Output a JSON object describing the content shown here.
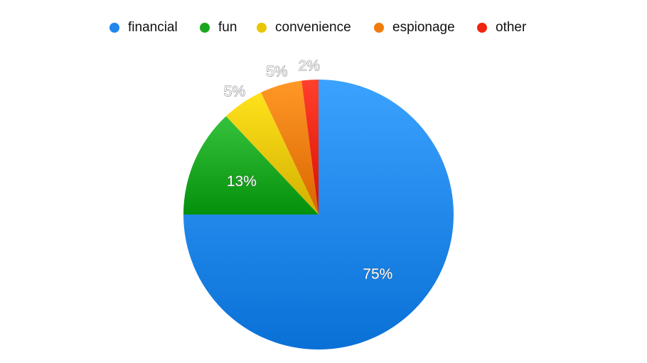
{
  "chart_data": {
    "type": "pie",
    "categories": [
      "financial",
      "fun",
      "convenience",
      "espionage",
      "other"
    ],
    "values": [
      75,
      13,
      5,
      5,
      2
    ],
    "labels": [
      "75%",
      "13%",
      "5%",
      "5%",
      "2%"
    ],
    "colors": [
      "#1f86ec",
      "#1aa620",
      "#e8c600",
      "#f07c0a",
      "#f02410"
    ],
    "legend_position": "top",
    "start_angle_deg": 0,
    "direction": "clockwise"
  }
}
